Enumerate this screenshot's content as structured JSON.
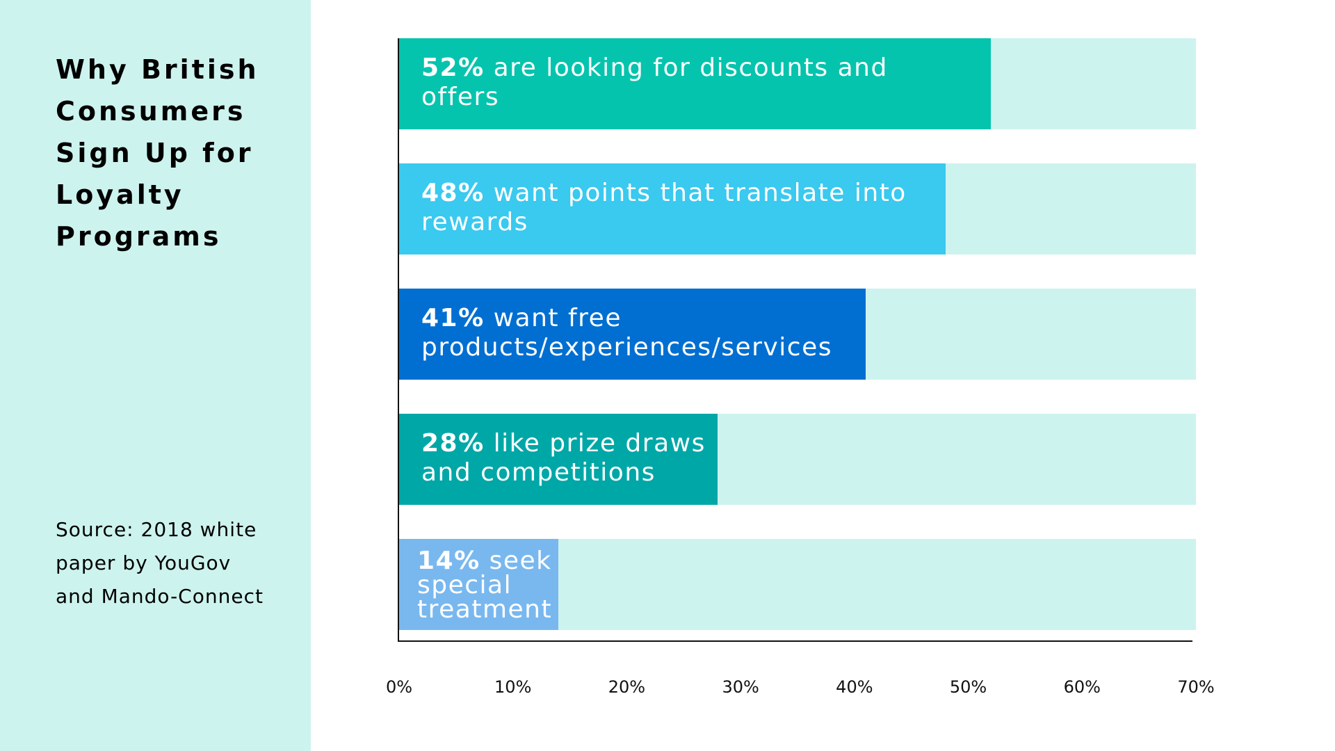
{
  "title": "Why British Consumers Sign Up for Loyalty Programs",
  "source": "Source: 2018 white paper by YouGov and Mando-Connect",
  "chart_data": {
    "type": "bar",
    "orientation": "horizontal",
    "title": "Why British Consumers Sign Up for Loyalty Programs",
    "xlim": [
      0,
      70
    ],
    "x_ticks": [
      "0%",
      "10%",
      "20%",
      "30%",
      "40%",
      "50%",
      "60%",
      "70%"
    ],
    "track_color": "#cdf3ee",
    "bars": [
      {
        "value": 52,
        "pct": "52%",
        "text": " are looking for discounts and offers",
        "color": "#05c4ad"
      },
      {
        "value": 48,
        "pct": "48%",
        "text": " want points that translate into rewards",
        "color": "#3ac9ef"
      },
      {
        "value": 41,
        "pct": "41%",
        "text": " want free products/experiences/services",
        "color": "#006fd1"
      },
      {
        "value": 28,
        "pct": "28%",
        "text": " like prize draws and competitions",
        "color": "#00a7a7"
      },
      {
        "value": 14,
        "pct": "14%",
        "text": " seek special treatment",
        "color": "#79b8ef"
      }
    ]
  }
}
